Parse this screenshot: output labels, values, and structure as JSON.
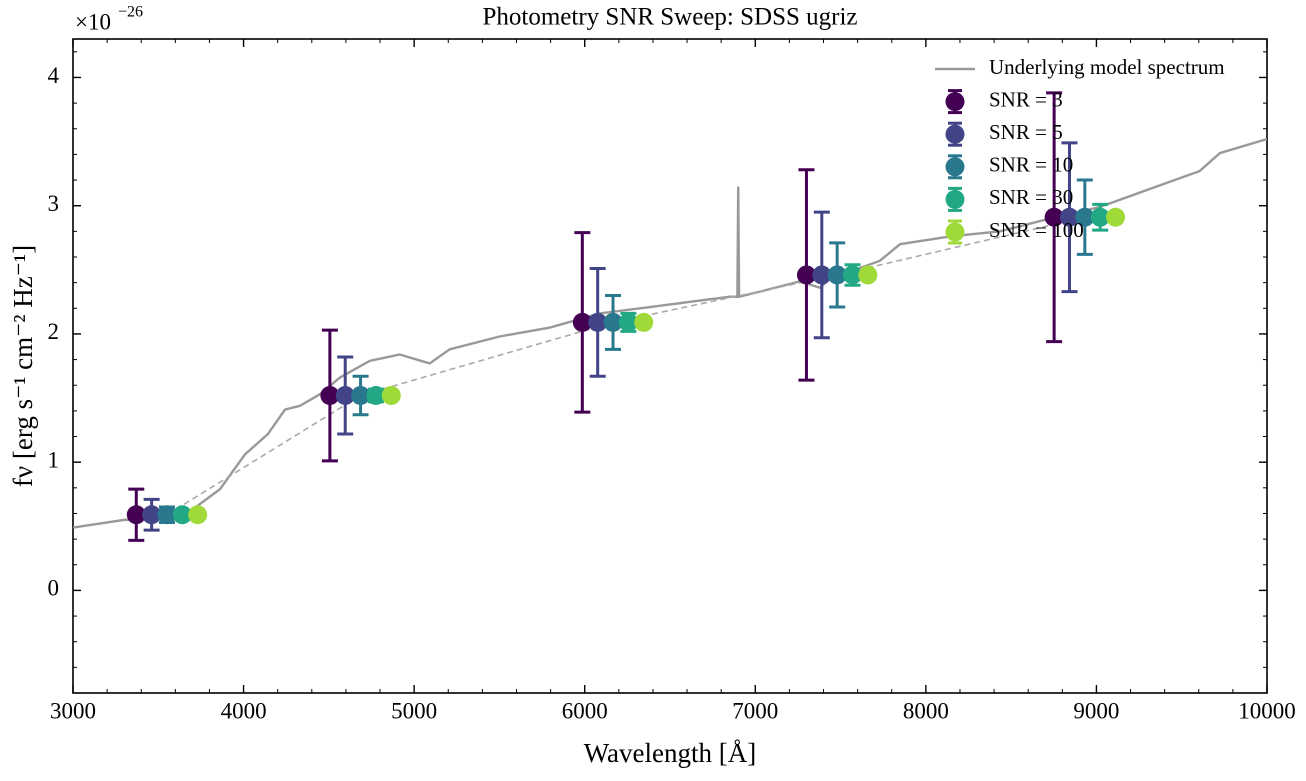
{
  "chart_data": {
    "type": "errorbar",
    "title": "Photometry SNR Sweep: SDSS ugriz",
    "x_label": "Wavelength [Å]",
    "y_label": "fν [erg s⁻¹ cm⁻² Hz⁻¹]",
    "y_offset": {
      "base": "×10",
      "exponent": "−26"
    },
    "xlim": [
      3000,
      10000
    ],
    "ylim": [
      -0.8,
      4.3
    ],
    "xticks": [
      3000,
      4000,
      5000,
      6000,
      7000,
      8000,
      9000,
      10000
    ],
    "yticks": [
      0,
      1,
      2,
      3,
      4
    ],
    "legend": "upper right",
    "model": {
      "name": "Underlying model spectrum",
      "color": "#999999",
      "x": [
        3000,
        3300,
        3500,
        3600,
        3700,
        3862,
        4008,
        4143,
        4243,
        4331,
        4448,
        4565,
        4740,
        4915,
        5091,
        5208,
        5501,
        5796,
        6089,
        6382,
        6675,
        6851,
        6895,
        6900,
        6905,
        7027,
        7261,
        7380,
        7437,
        7730,
        7849,
        8142,
        8434,
        8727,
        9020,
        9312,
        9605,
        9724,
        10000
      ],
      "values": [
        0.49,
        0.55,
        0.56,
        0.58,
        0.63,
        0.79,
        1.06,
        1.22,
        1.41,
        1.44,
        1.53,
        1.66,
        1.79,
        1.84,
        1.77,
        1.88,
        1.98,
        2.05,
        2.16,
        2.21,
        2.26,
        2.29,
        2.29,
        3.15,
        2.29,
        2.33,
        2.41,
        2.36,
        2.43,
        2.57,
        2.7,
        2.76,
        2.8,
        2.9,
        2.99,
        3.13,
        3.27,
        3.41,
        3.52
      ]
    },
    "reference": {
      "color": "#aaaaaa",
      "x": [
        3551,
        4686,
        6166,
        7480,
        8932
      ],
      "values": [
        0.59,
        1.52,
        2.09,
        2.46,
        2.91
      ]
    },
    "series": [
      {
        "name": "SNR = 3",
        "color": "#440154",
        "x": [
          3371,
          4506,
          5986,
          7300,
          8752
        ],
        "values": [
          0.59,
          1.52,
          2.09,
          2.46,
          2.91
        ],
        "errors": [
          0.2,
          0.51,
          0.7,
          0.82,
          0.97
        ]
      },
      {
        "name": "SNR = 5",
        "color": "#414487",
        "x": [
          3461,
          4596,
          6076,
          7390,
          8842
        ],
        "values": [
          0.59,
          1.52,
          2.09,
          2.46,
          2.91
        ],
        "errors": [
          0.12,
          0.3,
          0.42,
          0.49,
          0.58
        ]
      },
      {
        "name": "SNR = 10",
        "color": "#2a788e",
        "x": [
          3551,
          4686,
          6166,
          7480,
          8932
        ],
        "values": [
          0.59,
          1.52,
          2.09,
          2.46,
          2.91
        ],
        "errors": [
          0.06,
          0.15,
          0.21,
          0.25,
          0.29
        ]
      },
      {
        "name": "SNR = 30",
        "color": "#22a884",
        "x": [
          3641,
          4776,
          6256,
          7570,
          9022
        ],
        "values": [
          0.59,
          1.52,
          2.09,
          2.46,
          2.91
        ],
        "errors": [
          0.02,
          0.05,
          0.07,
          0.08,
          0.1
        ]
      },
      {
        "name": "SNR = 100",
        "color": "#a0da39",
        "x": [
          3731,
          4866,
          6346,
          7660,
          9112
        ],
        "values": [
          0.59,
          1.52,
          2.09,
          2.46,
          2.91
        ],
        "errors": [
          0.006,
          0.015,
          0.021,
          0.025,
          0.029
        ]
      }
    ]
  }
}
